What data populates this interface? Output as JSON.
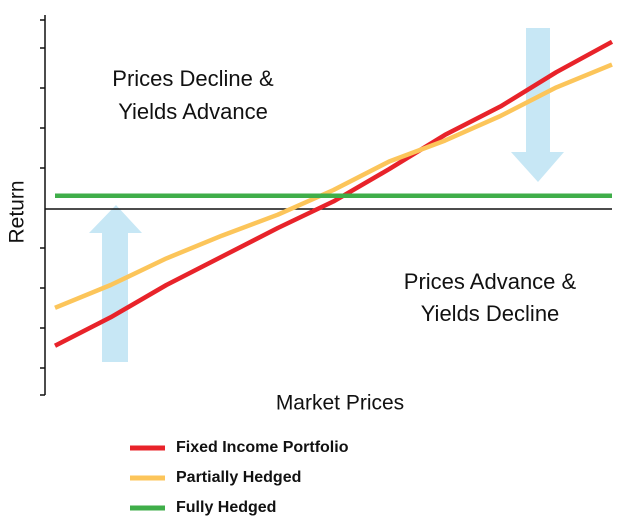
{
  "chart_data": {
    "type": "line",
    "xlabel": "Market Prices",
    "ylabel": "Return",
    "annotations": [
      "Prices Decline &",
      "Yields Advance",
      "Prices Advance &",
      "Yields Decline"
    ],
    "x": [
      0,
      1,
      2,
      3,
      4,
      5,
      6,
      7,
      8,
      9,
      10
    ],
    "xlim": [
      0,
      10
    ],
    "ylim": [
      -10,
      10
    ],
    "series": [
      {
        "name": "Fixed Income Portfolio",
        "color": "#e8232a",
        "values": [
          -7.2,
          -5.7,
          -4.0,
          -2.5,
          -1.0,
          0.4,
          2.1,
          3.9,
          5.4,
          7.2,
          8.8
        ]
      },
      {
        "name": "Partially Hedged",
        "color": "#fcc55a",
        "values": [
          -5.2,
          -4.0,
          -2.6,
          -1.4,
          -0.3,
          1.0,
          2.5,
          3.6,
          4.9,
          6.4,
          7.6
        ]
      },
      {
        "name": "Fully Hedged",
        "color": "#3fae49",
        "values": [
          0.7,
          0.7,
          0.7,
          0.7,
          0.7,
          0.7,
          0.7,
          0.7,
          0.7,
          0.7,
          0.7
        ]
      }
    ]
  }
}
